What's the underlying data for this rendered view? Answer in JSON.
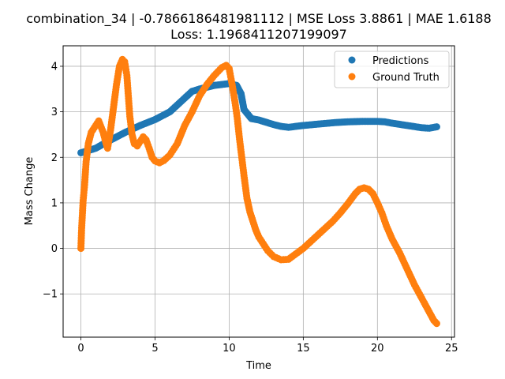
{
  "chart_data": {
    "type": "scatter",
    "title_line1": "combination_34 | -0.7866186481981112 | MSE Loss 3.8861 | MAE 1.6188",
    "title_line2": "Loss: 1.1968411207199097",
    "xlabel": "Time",
    "ylabel": "Mass Change",
    "xlim": [
      -1.2,
      25.2
    ],
    "ylim": [
      -1.95,
      4.45
    ],
    "xticks": [
      0,
      5,
      10,
      15,
      20,
      25
    ],
    "yticks": [
      -1,
      0,
      1,
      2,
      3,
      4
    ],
    "grid": true,
    "legend_position": "top-right",
    "series": [
      {
        "name": "Predictions",
        "color": "#1f77b4",
        "knots": [
          [
            0,
            2.1
          ],
          [
            1,
            2.2
          ],
          [
            2,
            2.38
          ],
          [
            3,
            2.55
          ],
          [
            4,
            2.7
          ],
          [
            5,
            2.83
          ],
          [
            6,
            3.0
          ],
          [
            7,
            3.3
          ],
          [
            7.5,
            3.45
          ],
          [
            8,
            3.5
          ],
          [
            9,
            3.58
          ],
          [
            10,
            3.62
          ],
          [
            10.5,
            3.58
          ],
          [
            10.8,
            3.4
          ],
          [
            11,
            3.05
          ],
          [
            11.5,
            2.85
          ],
          [
            12,
            2.82
          ],
          [
            13,
            2.72
          ],
          [
            13.5,
            2.68
          ],
          [
            14,
            2.66
          ],
          [
            15,
            2.7
          ],
          [
            16,
            2.73
          ],
          [
            17,
            2.76
          ],
          [
            18,
            2.78
          ],
          [
            19,
            2.79
          ],
          [
            20,
            2.79
          ],
          [
            20.5,
            2.78
          ],
          [
            21,
            2.75
          ],
          [
            22,
            2.7
          ],
          [
            23,
            2.65
          ],
          [
            23.5,
            2.64
          ],
          [
            24,
            2.67
          ]
        ]
      },
      {
        "name": "Ground Truth",
        "color": "#ff7f0e",
        "knots": [
          [
            0,
            0.0
          ],
          [
            0.05,
            0.45
          ],
          [
            0.15,
            1.05
          ],
          [
            0.25,
            1.4
          ],
          [
            0.35,
            1.9
          ],
          [
            0.5,
            2.3
          ],
          [
            0.7,
            2.55
          ],
          [
            1.0,
            2.7
          ],
          [
            1.2,
            2.8
          ],
          [
            1.5,
            2.55
          ],
          [
            1.7,
            2.3
          ],
          [
            1.8,
            2.2
          ],
          [
            2.0,
            2.6
          ],
          [
            2.2,
            3.1
          ],
          [
            2.4,
            3.6
          ],
          [
            2.6,
            4.0
          ],
          [
            2.8,
            4.15
          ],
          [
            2.95,
            4.1
          ],
          [
            3.1,
            3.8
          ],
          [
            3.2,
            3.35
          ],
          [
            3.3,
            2.9
          ],
          [
            3.45,
            2.5
          ],
          [
            3.6,
            2.3
          ],
          [
            3.8,
            2.25
          ],
          [
            4.0,
            2.35
          ],
          [
            4.2,
            2.45
          ],
          [
            4.4,
            2.38
          ],
          [
            4.6,
            2.2
          ],
          [
            4.8,
            2.0
          ],
          [
            5.0,
            1.92
          ],
          [
            5.3,
            1.88
          ],
          [
            5.6,
            1.93
          ],
          [
            6.0,
            2.05
          ],
          [
            6.5,
            2.3
          ],
          [
            7.0,
            2.7
          ],
          [
            7.5,
            3.0
          ],
          [
            8.0,
            3.35
          ],
          [
            8.5,
            3.6
          ],
          [
            9.0,
            3.8
          ],
          [
            9.5,
            3.97
          ],
          [
            9.8,
            4.02
          ],
          [
            10.0,
            3.95
          ],
          [
            10.2,
            3.6
          ],
          [
            10.4,
            3.2
          ],
          [
            10.55,
            2.85
          ],
          [
            10.7,
            2.4
          ],
          [
            10.85,
            2.0
          ],
          [
            11.0,
            1.6
          ],
          [
            11.2,
            1.1
          ],
          [
            11.4,
            0.8
          ],
          [
            11.6,
            0.6
          ],
          [
            11.8,
            0.4
          ],
          [
            12.0,
            0.25
          ],
          [
            12.3,
            0.1
          ],
          [
            12.6,
            -0.05
          ],
          [
            13.0,
            -0.18
          ],
          [
            13.5,
            -0.25
          ],
          [
            14.0,
            -0.24
          ],
          [
            14.5,
            -0.12
          ],
          [
            15.0,
            0.0
          ],
          [
            15.5,
            0.15
          ],
          [
            16.0,
            0.3
          ],
          [
            16.5,
            0.45
          ],
          [
            17.0,
            0.6
          ],
          [
            17.5,
            0.78
          ],
          [
            18.0,
            0.98
          ],
          [
            18.5,
            1.2
          ],
          [
            18.8,
            1.3
          ],
          [
            19.1,
            1.33
          ],
          [
            19.4,
            1.3
          ],
          [
            19.7,
            1.2
          ],
          [
            20.0,
            1.0
          ],
          [
            20.3,
            0.78
          ],
          [
            20.6,
            0.5
          ],
          [
            21.0,
            0.2
          ],
          [
            21.5,
            -0.1
          ],
          [
            22.0,
            -0.45
          ],
          [
            22.5,
            -0.8
          ],
          [
            23.0,
            -1.1
          ],
          [
            23.5,
            -1.4
          ],
          [
            23.8,
            -1.58
          ],
          [
            24.0,
            -1.65
          ]
        ]
      }
    ]
  }
}
